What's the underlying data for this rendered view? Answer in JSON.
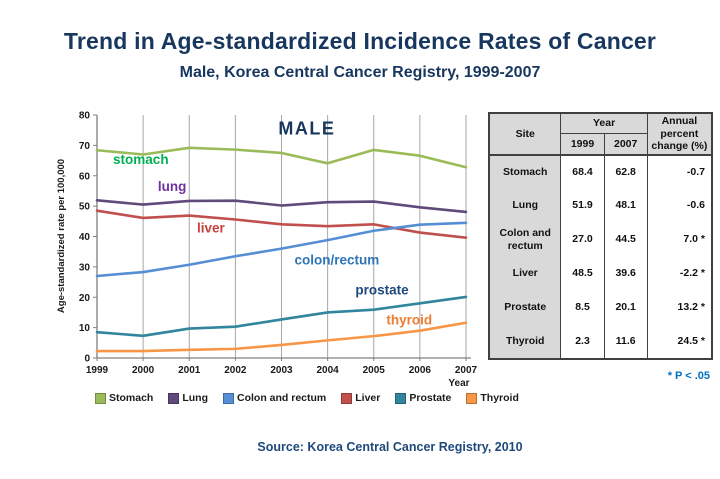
{
  "header": {
    "title": "Trend in Age-standardized Incidence Rates of Cancer",
    "subtitle": "Male, Korea Central Cancer Registry, 1999-2007"
  },
  "chart_data": {
    "type": "line",
    "x": [
      1999,
      2000,
      2001,
      2002,
      2003,
      2004,
      2005,
      2006,
      2007
    ],
    "xlabel": "Year",
    "ylabel": "Age-standardized rate per 100,000",
    "ylim": [
      0,
      80
    ],
    "ytick_step": 10,
    "grid": "vertical-only",
    "legend_position": "bottom",
    "series": [
      {
        "name": "Stomach",
        "color": "#9BBB59",
        "values": [
          68.4,
          67.0,
          69.2,
          68.6,
          67.5,
          64.1,
          68.5,
          66.6,
          62.8
        ]
      },
      {
        "name": "Lung",
        "color": "#604A7B",
        "values": [
          51.9,
          50.5,
          51.7,
          51.8,
          50.2,
          51.3,
          51.5,
          49.6,
          48.1
        ]
      },
      {
        "name": "Colon and rectum",
        "color": "#558ED5",
        "values": [
          27.0,
          28.3,
          30.7,
          33.5,
          36.0,
          38.8,
          41.9,
          43.9,
          44.5
        ]
      },
      {
        "name": "Liver",
        "color": "#C0504D",
        "values": [
          48.5,
          46.1,
          46.9,
          45.6,
          44.0,
          43.4,
          44.0,
          41.3,
          39.6
        ]
      },
      {
        "name": "Prostate",
        "color": "#31859C",
        "values": [
          8.5,
          7.3,
          9.7,
          10.3,
          12.7,
          15.0,
          15.9,
          18.0,
          20.1
        ]
      },
      {
        "name": "Thyroid",
        "color": "#F79646",
        "values": [
          2.3,
          2.3,
          2.7,
          3.0,
          4.3,
          5.8,
          7.2,
          9.0,
          11.6
        ]
      }
    ],
    "annotations": [
      {
        "text": "MALE",
        "color": "#17375E",
        "year": 2003.55,
        "value": 73.5,
        "size": 18,
        "spacing": 1.5
      },
      {
        "text": "stomach",
        "color": "#00B050",
        "year": 1999.95,
        "value": 63.8,
        "size": 13.5
      },
      {
        "text": "lung",
        "color": "#7030A0",
        "year": 2000.63,
        "value": 55.0,
        "size": 13.5
      },
      {
        "text": "liver",
        "color": "#C9403B",
        "year": 2001.47,
        "value": 41.3,
        "size": 13.5
      },
      {
        "text": "colon/rectum",
        "color": "#2E75B6",
        "year": 2004.2,
        "value": 30.8,
        "size": 13.5
      },
      {
        "text": "prostate",
        "color": "#1F497D",
        "year": 2005.18,
        "value": 20.9,
        "size": 13.5
      },
      {
        "text": "thyroid",
        "color": "#ED7D31",
        "year": 2005.77,
        "value": 11.0,
        "size": 13.5
      }
    ]
  },
  "table": {
    "col_site": "Site",
    "col_year": "Year",
    "col_1999": "1999",
    "col_2007": "2007",
    "col_apc": "Annual percent change (%)",
    "rows": [
      {
        "site": "Stomach",
        "y1999": "68.4",
        "y2007": "62.8",
        "apc": "-0.7"
      },
      {
        "site": "Lung",
        "y1999": "51.9",
        "y2007": "48.1",
        "apc": "-0.6"
      },
      {
        "site": "Colon and rectum",
        "y1999": "27.0",
        "y2007": "44.5",
        "apc": "7.0 *"
      },
      {
        "site": "Liver",
        "y1999": "48.5",
        "y2007": "39.6",
        "apc": "-2.2 *"
      },
      {
        "site": "Prostate",
        "y1999": "8.5",
        "y2007": "20.1",
        "apc": "13.2 *"
      },
      {
        "site": "Thyroid",
        "y1999": "2.3",
        "y2007": "11.6",
        "apc": "24.5 *"
      }
    ],
    "footnote": "* P < .05"
  },
  "source": "Source: Korea Central Cancer Registry, 2010"
}
